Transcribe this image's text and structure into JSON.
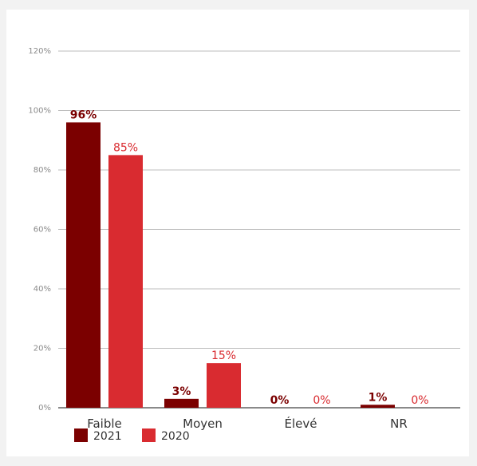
{
  "chart_data": {
    "type": "bar",
    "title": "",
    "xlabel": "",
    "ylabel": "",
    "categories": [
      "Faible",
      "Moyen",
      "Élevé",
      "NR"
    ],
    "series": [
      {
        "name": "2021",
        "color": "#7b0000",
        "values": [
          96,
          3,
          0,
          1
        ],
        "labels": [
          "96%",
          "3%",
          "0%",
          "1%"
        ],
        "label_bold": true
      },
      {
        "name": "2020",
        "color": "#d92b30",
        "values": [
          85,
          15,
          0,
          0
        ],
        "labels": [
          "85%",
          "15%",
          "0%",
          "0%"
        ],
        "label_bold": false
      }
    ],
    "ylim": [
      0,
      120
    ],
    "yticks": [
      0,
      20,
      40,
      60,
      80,
      100,
      120
    ],
    "ytick_labels": [
      "0%",
      "20%",
      "40%",
      "60%",
      "80%",
      "100%",
      "120%"
    ],
    "grid": true,
    "legend_position": "bottom-left"
  }
}
